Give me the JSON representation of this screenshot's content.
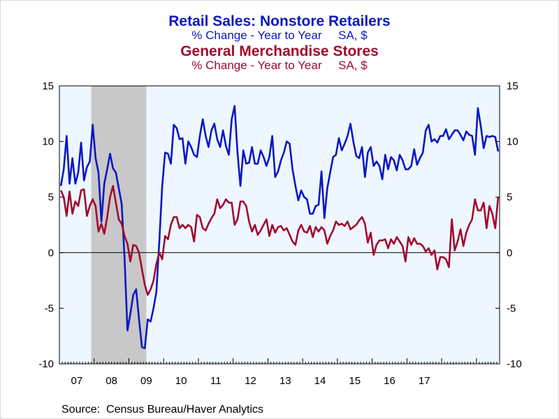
{
  "titles": {
    "line1": "Retail Sales: Nonstore Retailers",
    "line1_sub": "% Change - Year to Year     SA, $",
    "line2": "General Merchandise Stores",
    "line2_sub": "% Change - Year to Year     SA, $"
  },
  "source": "Source:  Census Bureau/Haver Analytics",
  "chart_data": {
    "type": "line",
    "title": "",
    "xlabel": "",
    "ylabel": "",
    "ylim": [
      -10,
      15
    ],
    "y_ticks": [
      15,
      10,
      5,
      0,
      -5,
      -10
    ],
    "x_tick_labels": [
      "07",
      "08",
      "09",
      "10",
      "11",
      "12",
      "13",
      "14",
      "15",
      "16",
      "17"
    ],
    "x_start": "2007-01",
    "recession_shading": {
      "start": "2007-12",
      "end": "2009-06",
      "color": "#c8c8c8"
    },
    "background_color": "#eef6ff",
    "zero_line": true,
    "series": [
      {
        "name": "Retail Sales: Nonstore Retailers",
        "color": "#0b18c2",
        "values": [
          6.0,
          7.5,
          10.5,
          6.2,
          8.5,
          6.2,
          7.2,
          9.9,
          6.5,
          7.7,
          8.2,
          11.5,
          8.5,
          7.2,
          2.8,
          6.2,
          7.5,
          8.9,
          7.6,
          7.2,
          5.8,
          4.4,
          -0.5,
          -7.0,
          -5.5,
          -3.8,
          -3.3,
          -6.0,
          -8.5,
          -8.6,
          -6.0,
          -6.2,
          -5.0,
          -3.5,
          1.0,
          6.0,
          9.0,
          8.9,
          8.0,
          11.5,
          11.2,
          10.2,
          10.3,
          8.0,
          10.0,
          9.5,
          8.8,
          8.6,
          10.5,
          12.0,
          10.5,
          9.5,
          11.0,
          11.6,
          10.2,
          9.5,
          11.0,
          9.6,
          8.8,
          12.0,
          13.2,
          9.0,
          6.0,
          9.2,
          8.0,
          8.1,
          9.5,
          8.0,
          8.0,
          9.2,
          8.6,
          7.8,
          8.6,
          10.5,
          6.8,
          7.3,
          8.3,
          9.0,
          10.0,
          9.8,
          7.5,
          6.0,
          4.7,
          5.6,
          5.0,
          4.8,
          3.5,
          3.5,
          4.2,
          4.3,
          7.3,
          3.1,
          5.8,
          7.2,
          8.6,
          8.8,
          10.3,
          9.2,
          9.8,
          10.5,
          11.6,
          10.0,
          8.7,
          8.5,
          9.5,
          6.8,
          9.0,
          9.5,
          7.8,
          8.2,
          7.8,
          6.6,
          8.8,
          7.5,
          8.6,
          8.3,
          7.4,
          8.8,
          8.3,
          7.5,
          7.5,
          7.8,
          9.3,
          7.9,
          8.5,
          9.0,
          11.0,
          11.5,
          10.0,
          10.2,
          9.9,
          10.5,
          10.5,
          11.1,
          10.2,
          10.6,
          11.0,
          11.0,
          10.6,
          10.1,
          10.9,
          10.6,
          10.5,
          8.8,
          13.0,
          11.4,
          9.4,
          10.5,
          10.4,
          10.5,
          10.4,
          9.1
        ]
      },
      {
        "name": "General Merchandise Stores",
        "color": "#a20a2d",
        "values": [
          5.6,
          5.0,
          3.3,
          5.5,
          3.5,
          4.6,
          4.2,
          5.6,
          5.7,
          3.3,
          4.2,
          4.8,
          4.2,
          1.9,
          2.6,
          1.7,
          3.2,
          5.0,
          6.0,
          4.5,
          3.0,
          2.6,
          1.5,
          0.8,
          -0.8,
          0.7,
          0.6,
          0.0,
          -1.5,
          -2.9,
          -3.8,
          -3.3,
          -2.5,
          -1.0,
          0.0,
          -0.6,
          1.5,
          1.2,
          2.5,
          3.2,
          3.2,
          2.2,
          2.5,
          2.2,
          2.5,
          2.3,
          1.0,
          3.4,
          3.2,
          2.2,
          2.0,
          2.6,
          3.1,
          3.5,
          4.8,
          4.0,
          4.3,
          4.8,
          4.5,
          4.5,
          2.5,
          3.0,
          4.6,
          4.6,
          4.2,
          2.8,
          1.9,
          2.5,
          1.6,
          2.0,
          2.5,
          3.0,
          1.5,
          2.5,
          1.8,
          2.3,
          2.4,
          2.0,
          2.2,
          1.6,
          1.0,
          0.7,
          2.0,
          2.5,
          1.9,
          1.8,
          2.4,
          1.4,
          2.3,
          1.9,
          2.3,
          2.0,
          0.8,
          1.5,
          2.0,
          2.8,
          2.5,
          2.6,
          2.4,
          2.8,
          2.1,
          2.3,
          2.5,
          2.9,
          3.2,
          2.6,
          0.9,
          1.8,
          -0.2,
          0.7,
          1.1,
          1.1,
          1.2,
          0.4,
          1.2,
          0.8,
          1.4,
          1.0,
          0.6,
          -0.8,
          1.4,
          0.7,
          1.3,
          0.8,
          0.8,
          0.6,
          0.1,
          0.4,
          -0.2,
          0.2,
          -1.5,
          -0.4,
          -0.4,
          -0.6,
          -1.3,
          3.0,
          0.2,
          1.0,
          2.1,
          0.6,
          1.8,
          2.5,
          3.0,
          4.8,
          3.8,
          3.8,
          4.5,
          2.2,
          4.2,
          3.5,
          2.2,
          5.0
        ]
      }
    ]
  }
}
